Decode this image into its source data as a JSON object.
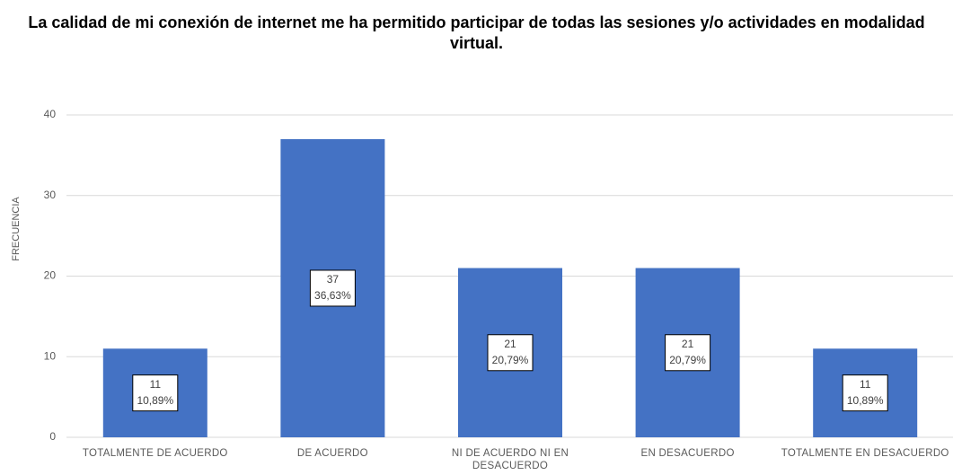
{
  "chart_data": {
    "type": "bar",
    "title": "La calidad de mi conexión de internet me ha permitido participar de todas las sesiones y/o actividades en modalidad virtual.",
    "y_label": "FRECUENCIA",
    "categories": [
      "TOTALMENTE DE ACUERDO",
      "DE ACUERDO",
      "NI DE ACUERDO NI EN DESACUERDO",
      "EN DESACUERDO",
      "TOTALMENTE EN DESACUERDO"
    ],
    "values": [
      11,
      37,
      21,
      21,
      11
    ],
    "percent_labels": [
      "10,89%",
      "36,63%",
      "20,79%",
      "20,79%",
      "10,89%"
    ],
    "color": "#4472c4",
    "ylim": [
      0,
      40
    ],
    "yticks": [
      0,
      10,
      20,
      30,
      40
    ],
    "grid": true
  }
}
